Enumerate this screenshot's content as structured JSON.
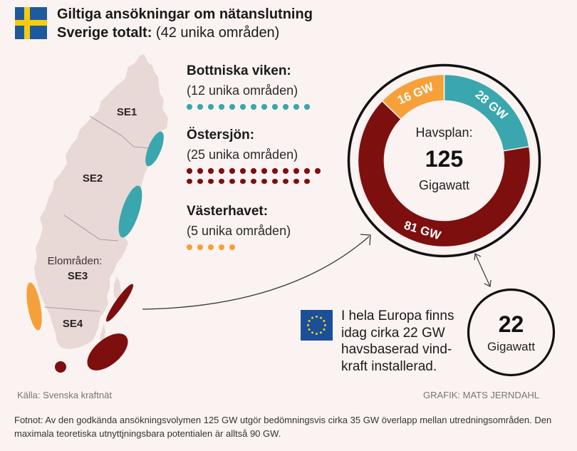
{
  "header": {
    "title": "Giltiga ansökningar om nätanslutning",
    "subtitle_bold": "Sverige totalt:",
    "subtitle_rest": " (42 unika områden)",
    "flag_icon": "sweden-flag-icon"
  },
  "map": {
    "legend_label": "Elområden:",
    "zones": [
      "SE1",
      "SE2",
      "SE3",
      "SE4"
    ]
  },
  "regions": [
    {
      "name": "Bottniska viken:",
      "count_label": "(12 unika områden)",
      "count": 12,
      "color": "#3aa6ad"
    },
    {
      "name": "Östersjön:",
      "count_label": "(25 unika områden)",
      "count": 25,
      "color": "#7e0f0f"
    },
    {
      "name": "Västerhavet:",
      "count_label": "(5 unika områden)",
      "count": 5,
      "color": "#f6a03a"
    }
  ],
  "chart_data": {
    "type": "pie",
    "title": "Havsplan:",
    "total": 125,
    "total_unit": "Gigawatt",
    "categories": [
      "Bottniska viken",
      "Östersjön",
      "Västerhavet"
    ],
    "values": [
      28,
      81,
      16
    ],
    "labels": [
      "28 GW",
      "81 GW",
      "16 GW"
    ],
    "colors": [
      "#3aa6ad",
      "#7e0f0f",
      "#f6a03a"
    ]
  },
  "europe": {
    "text_lines": [
      "I hela Europa finns",
      "idag cirka 22 GW",
      "havsbaserad vind-",
      "kraft installerad."
    ],
    "value": "22",
    "unit": "Gigawatt",
    "flag_icon": "eu-flag-icon"
  },
  "footer": {
    "source": "Källa: Svenska kraftnät",
    "credit": "GRAFIK: MATS JERNDAHL",
    "footnote": "Fotnot: Av den godkända ansökningsvolymen 125 GW utgör bedömningsvis cirka 35 GW överlapp mellan utredningsområden. Den maximala teoretiska utnyttjningsbara potentialen är alltså 90 GW."
  },
  "colors": {
    "background": "#fbf3f1",
    "land": "#e8d8d6",
    "teal": "#3aa6ad",
    "darkred": "#7e0f0f",
    "orange": "#f6a03a"
  }
}
